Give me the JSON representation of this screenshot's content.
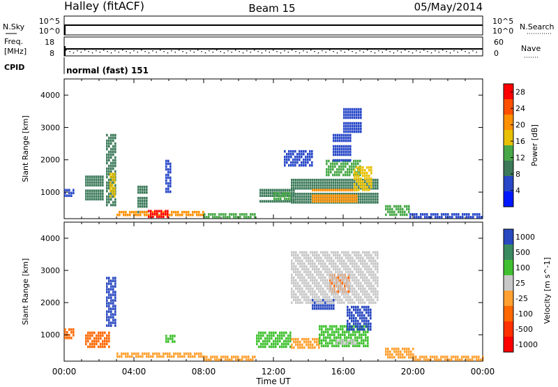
{
  "header": {
    "station": "Halley (fitACF)",
    "beam": "Beam 15",
    "date": "05/May/2014"
  },
  "summary_panels": {
    "nsky_label": "N.Sky",
    "nsky_ticks": [
      "10^5",
      "10^0"
    ],
    "nsearch_label": "N.Search",
    "nsearch_ticks": [
      "10^5",
      "10^0"
    ],
    "freq_label": "Freq.",
    "freq_unit": "[MHz]",
    "freq_ticks": [
      "18",
      "8"
    ],
    "nave_label": "Nave",
    "nave_ticks": [
      "60",
      "0"
    ],
    "cpid_label": "CPID",
    "cpid_text": "normal (fast) 151"
  },
  "colors": {
    "power_scale": [
      "#0018ff",
      "#2848c8",
      "#3c7a5a",
      "#48a848",
      "#e8c000",
      "#ff9000",
      "#ff5000",
      "#ff0000"
    ],
    "velocity_scale": [
      "#ff0000",
      "#ff3000",
      "#ff6800",
      "#ffa030",
      "#c8c8c8",
      "#40c030",
      "#3a8a60",
      "#2848c0"
    ]
  },
  "chart_data": [
    {
      "type": "heatmap",
      "title": "Power",
      "ylabel": "Slant Range [km]",
      "xlabel": "Time UT",
      "x_ticks": [
        "00:00",
        "04:00",
        "08:00",
        "12:00",
        "16:00",
        "20:00",
        "00:00"
      ],
      "y_ticks": [
        "1000",
        "2000",
        "3000",
        "4000"
      ],
      "ylim": [
        180,
        4500
      ],
      "colorbar": {
        "label": "Power [dB]",
        "ticks": [
          "4",
          "8",
          "12",
          "16",
          "20",
          "24",
          "28"
        ],
        "range": [
          0,
          30
        ]
      },
      "regions": [
        {
          "t0": 0.0,
          "t1": 0.6,
          "r0": 900,
          "r1": 1100,
          "v": 5
        },
        {
          "t0": 1.2,
          "t1": 2.2,
          "r0": 800,
          "r1": 1600,
          "v": 8
        },
        {
          "t0": 2.4,
          "t1": 3.0,
          "r0": 600,
          "r1": 2800,
          "v": 9
        },
        {
          "t0": 2.6,
          "t1": 2.9,
          "r0": 900,
          "r1": 1600,
          "v": 15
        },
        {
          "t0": 4.2,
          "t1": 4.8,
          "r0": 400,
          "r1": 1200,
          "v": 10
        },
        {
          "t0": 5.8,
          "t1": 6.1,
          "r0": 1000,
          "r1": 2000,
          "v": 6
        },
        {
          "t0": 3.0,
          "t1": 8.0,
          "r0": 280,
          "r1": 420,
          "v": 22
        },
        {
          "t0": 4.8,
          "t1": 6.0,
          "r0": 250,
          "r1": 450,
          "v": 28
        },
        {
          "t0": 8.0,
          "t1": 11.0,
          "r0": 250,
          "r1": 350,
          "v": 12
        },
        {
          "t0": 11.2,
          "t1": 13.2,
          "r0": 700,
          "r1": 1100,
          "v": 8
        },
        {
          "t0": 12.0,
          "t1": 13.0,
          "r0": 800,
          "r1": 1000,
          "v": 14
        },
        {
          "t0": 13.0,
          "t1": 18.0,
          "r0": 650,
          "r1": 1500,
          "v": 10
        },
        {
          "t0": 14.2,
          "t1": 16.8,
          "r0": 700,
          "r1": 1100,
          "v": 19
        },
        {
          "t0": 15.0,
          "t1": 17.0,
          "r0": 1500,
          "r1": 2000,
          "v": 12
        },
        {
          "t0": 15.4,
          "t1": 16.4,
          "r0": 2000,
          "r1": 2800,
          "v": 7
        },
        {
          "t0": 16.0,
          "t1": 17.0,
          "r0": 2800,
          "r1": 3600,
          "v": 6
        },
        {
          "t0": 16.6,
          "t1": 17.6,
          "r0": 1100,
          "r1": 1800,
          "v": 18
        },
        {
          "t0": 12.6,
          "t1": 14.2,
          "r0": 1800,
          "r1": 2300,
          "v": 6
        },
        {
          "t0": 18.4,
          "t1": 19.8,
          "r0": 300,
          "r1": 600,
          "v": 14
        },
        {
          "t0": 19.8,
          "t1": 24.0,
          "r0": 250,
          "r1": 350,
          "v": 5
        }
      ]
    },
    {
      "type": "heatmap",
      "title": "Velocity",
      "ylabel": "Slant Range [km]",
      "xlabel": "Time UT",
      "x_ticks": [
        "00:00",
        "04:00",
        "08:00",
        "12:00",
        "16:00",
        "20:00",
        "00:00"
      ],
      "y_ticks": [
        "1000",
        "2000",
        "3000",
        "4000"
      ],
      "ylim": [
        180,
        4500
      ],
      "colorbar": {
        "label": "Velocity [m s^-1]",
        "ticks": [
          "1000",
          "500",
          "100",
          "25",
          "-25",
          "-100",
          "-500",
          "-1000"
        ]
      },
      "regions": [
        {
          "t0": 0.0,
          "t1": 0.6,
          "r0": 900,
          "r1": 1200,
          "c": 2
        },
        {
          "t0": 1.2,
          "t1": 2.6,
          "r0": 600,
          "r1": 1100,
          "c": 2
        },
        {
          "t0": 2.4,
          "t1": 3.0,
          "r0": 1300,
          "r1": 2800,
          "c": 7
        },
        {
          "t0": 3.0,
          "t1": 8.0,
          "r0": 280,
          "r1": 450,
          "c": 3
        },
        {
          "t0": 5.8,
          "t1": 6.4,
          "r0": 800,
          "r1": 1000,
          "c": 5
        },
        {
          "t0": 8.0,
          "t1": 11.0,
          "r0": 250,
          "r1": 350,
          "c": 3
        },
        {
          "t0": 11.0,
          "t1": 13.0,
          "r0": 650,
          "r1": 1100,
          "c": 5
        },
        {
          "t0": 13.0,
          "t1": 14.6,
          "r0": 600,
          "r1": 900,
          "c": 3
        },
        {
          "t0": 14.6,
          "t1": 17.4,
          "r0": 650,
          "r1": 1300,
          "c": 5
        },
        {
          "t0": 15.6,
          "t1": 16.8,
          "r0": 700,
          "r1": 850,
          "c": 4
        },
        {
          "t0": 16.2,
          "t1": 17.6,
          "r0": 1200,
          "r1": 1900,
          "c": 7
        },
        {
          "t0": 14.2,
          "t1": 15.4,
          "r0": 1800,
          "r1": 2200,
          "c": 7
        },
        {
          "t0": 15.2,
          "t1": 16.4,
          "r0": 2300,
          "r1": 2900,
          "c": 2
        },
        {
          "t0": 13.0,
          "t1": 18.0,
          "r0": 2000,
          "r1": 3600,
          "c": 4
        },
        {
          "t0": 18.4,
          "t1": 20.0,
          "r0": 300,
          "r1": 600,
          "c": 3
        },
        {
          "t0": 20.0,
          "t1": 24.0,
          "r0": 250,
          "r1": 350,
          "c": 3
        }
      ]
    }
  ]
}
